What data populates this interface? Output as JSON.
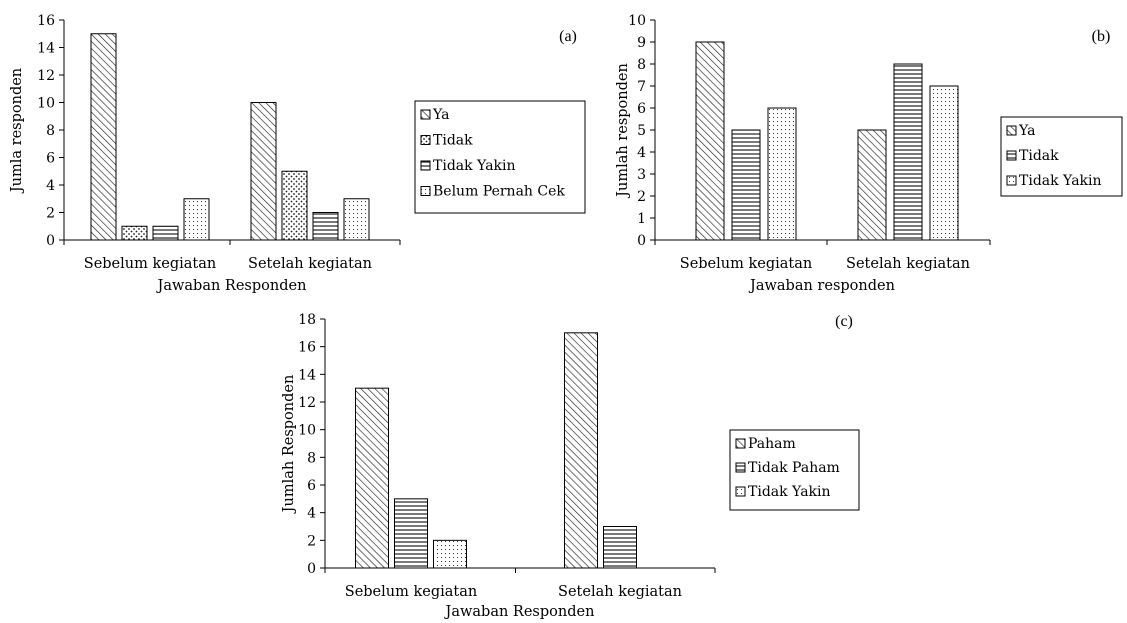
{
  "chart_data": [
    {
      "type": "bar",
      "panel_label": "(a)",
      "categories": [
        "Sebelum kegiatan",
        "Setelah kegiatan"
      ],
      "series": [
        {
          "name": "Ya",
          "values": [
            15,
            10
          ],
          "pattern": "diag"
        },
        {
          "name": "Tidak",
          "values": [
            1,
            5
          ],
          "pattern": "dots-coarse"
        },
        {
          "name": "Tidak Yakin",
          "values": [
            1,
            2
          ],
          "pattern": "horiz"
        },
        {
          "name": "Belum Pernah Cek",
          "values": [
            3,
            3
          ],
          "pattern": "dots-fine"
        }
      ],
      "xlabel": "Jawaban Responden",
      "ylabel": "Jumla responden",
      "ylim": [
        0,
        16
      ],
      "yticks": [
        0,
        2,
        4,
        6,
        8,
        10,
        12,
        14,
        16
      ],
      "grid": false,
      "legend": "right"
    },
    {
      "type": "bar",
      "panel_label": "(b)",
      "categories": [
        "Sebelum kegiatan",
        "Setelah kegiatan"
      ],
      "series": [
        {
          "name": "Ya",
          "values": [
            9,
            5
          ],
          "pattern": "diag"
        },
        {
          "name": "Tidak",
          "values": [
            5,
            8
          ],
          "pattern": "horiz"
        },
        {
          "name": "Tidak Yakin",
          "values": [
            6,
            7
          ],
          "pattern": "dots-fine"
        }
      ],
      "xlabel": "Jawaban responden",
      "ylabel": "Jumlah responden",
      "ylim": [
        0,
        10
      ],
      "yticks": [
        0,
        1,
        2,
        3,
        4,
        5,
        6,
        7,
        8,
        9,
        10
      ],
      "grid": false,
      "legend": "right"
    },
    {
      "type": "bar",
      "panel_label": "(c)",
      "categories": [
        "Sebelum kegiatan",
        "Setelah kegiatan"
      ],
      "series": [
        {
          "name": "Paham",
          "values": [
            13,
            17
          ],
          "pattern": "diag"
        },
        {
          "name": "Tidak Paham",
          "values": [
            5,
            3
          ],
          "pattern": "horiz"
        },
        {
          "name": "Tidak Yakin",
          "values": [
            2,
            0
          ],
          "pattern": "dots-fine"
        }
      ],
      "xlabel": "Jawaban Responden",
      "ylabel": "Jumlah Responden",
      "ylim": [
        0,
        18
      ],
      "yticks": [
        0,
        2,
        4,
        6,
        8,
        10,
        12,
        14,
        16,
        18
      ],
      "grid": false,
      "legend": "right"
    }
  ]
}
